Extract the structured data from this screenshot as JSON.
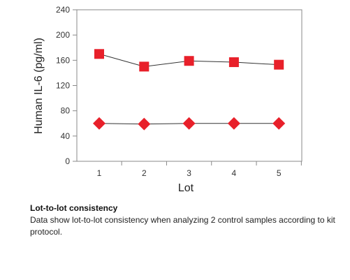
{
  "chart_data": {
    "type": "line",
    "xlabel": "Lot",
    "ylabel": "Human IL-6 (pg/ml)",
    "categories": [
      "1",
      "2",
      "3",
      "4",
      "5"
    ],
    "ylim": [
      0,
      240
    ],
    "yticks": [
      0,
      40,
      80,
      120,
      160,
      200,
      240
    ],
    "grid": false,
    "series": [
      {
        "marker": "square",
        "color": "#e8202a",
        "values": [
          170,
          150,
          159,
          157,
          153
        ]
      },
      {
        "marker": "diamond",
        "color": "#e8202a",
        "values": [
          60,
          59,
          60,
          60,
          60
        ]
      }
    ]
  },
  "caption": {
    "title": "Lot-to-lot consistency",
    "text": "Data show lot-to-lot consistency when analyzing 2 control samples according to kit protocol."
  }
}
